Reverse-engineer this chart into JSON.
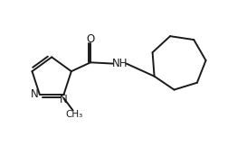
{
  "bg_color": "#ffffff",
  "line_color": "#1a1a1a",
  "line_width": 1.4,
  "font_size_atom": 8.5,
  "figsize": [
    2.62,
    1.62
  ],
  "dpi": 100,
  "xlim": [
    0,
    10
  ],
  "ylim": [
    0,
    6.2
  ]
}
